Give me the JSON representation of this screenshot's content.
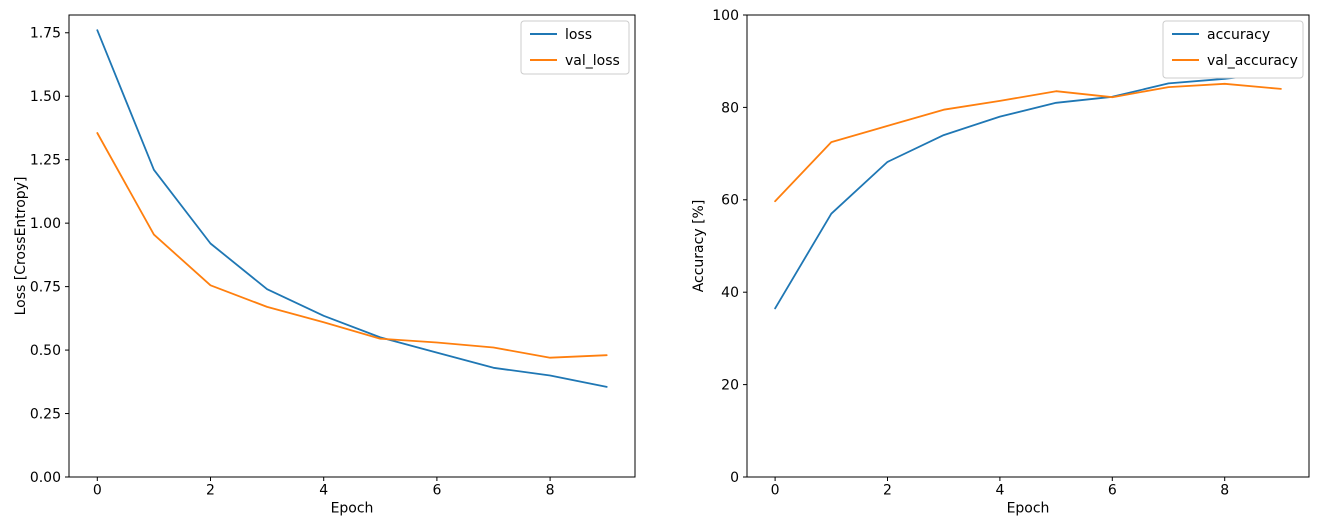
{
  "figure": {
    "background": "#ffffff",
    "text_color": "#000000",
    "spine_color": "#000000",
    "legend_border_color": "#cccccc",
    "legend_background": "#ffffff"
  },
  "chart_data": [
    {
      "type": "line",
      "title": "",
      "xlabel": "Epoch",
      "ylabel": "Loss [CrossEntropy]",
      "x": [
        0,
        1,
        2,
        3,
        4,
        5,
        6,
        7,
        8,
        9
      ],
      "series": [
        {
          "name": "loss",
          "color": "#1f77b4",
          "values": [
            1.76,
            1.21,
            0.92,
            0.74,
            0.635,
            0.55,
            0.49,
            0.43,
            0.4,
            0.355
          ]
        },
        {
          "name": "val_loss",
          "color": "#ff7f0e",
          "values": [
            1.355,
            0.955,
            0.755,
            0.67,
            0.61,
            0.545,
            0.53,
            0.51,
            0.47,
            0.48
          ]
        }
      ],
      "xlim": [
        -0.5,
        9.5
      ],
      "ylim": [
        0,
        1.82
      ],
      "x_ticks": [
        0,
        2,
        4,
        6,
        8
      ],
      "x_tick_labels": [
        "0",
        "2",
        "4",
        "6",
        "8"
      ],
      "y_ticks": [
        0.0,
        0.25,
        0.5,
        0.75,
        1.0,
        1.25,
        1.5,
        1.75
      ],
      "y_tick_labels": [
        "0.00",
        "0.25",
        "0.50",
        "0.75",
        "1.00",
        "1.25",
        "1.50",
        "1.75"
      ],
      "grid": false,
      "legend": {
        "position": "upper right",
        "entries": [
          "loss",
          "val_loss"
        ]
      }
    },
    {
      "type": "line",
      "title": "",
      "xlabel": "Epoch",
      "ylabel": "Accuracy [%]",
      "x": [
        0,
        1,
        2,
        3,
        4,
        5,
        6,
        7,
        8,
        9
      ],
      "series": [
        {
          "name": "accuracy",
          "color": "#1f77b4",
          "values": [
            36.5,
            57,
            68.2,
            74,
            78,
            81,
            82.3,
            85.2,
            86.2,
            87.6
          ]
        },
        {
          "name": "val_accuracy",
          "color": "#ff7f0e",
          "values": [
            59.7,
            72.5,
            76,
            79.5,
            81.4,
            83.5,
            82.2,
            84.4,
            85.1,
            84
          ]
        }
      ],
      "xlim": [
        -0.5,
        9.5
      ],
      "ylim": [
        0,
        100
      ],
      "x_ticks": [
        0,
        2,
        4,
        6,
        8
      ],
      "x_tick_labels": [
        "0",
        "2",
        "4",
        "6",
        "8"
      ],
      "y_ticks": [
        0,
        20,
        40,
        60,
        80,
        100
      ],
      "y_tick_labels": [
        "0",
        "20",
        "40",
        "60",
        "80",
        "100"
      ],
      "grid": false,
      "legend": {
        "position": "upper right",
        "entries": [
          "accuracy",
          "val_accuracy"
        ]
      }
    }
  ]
}
